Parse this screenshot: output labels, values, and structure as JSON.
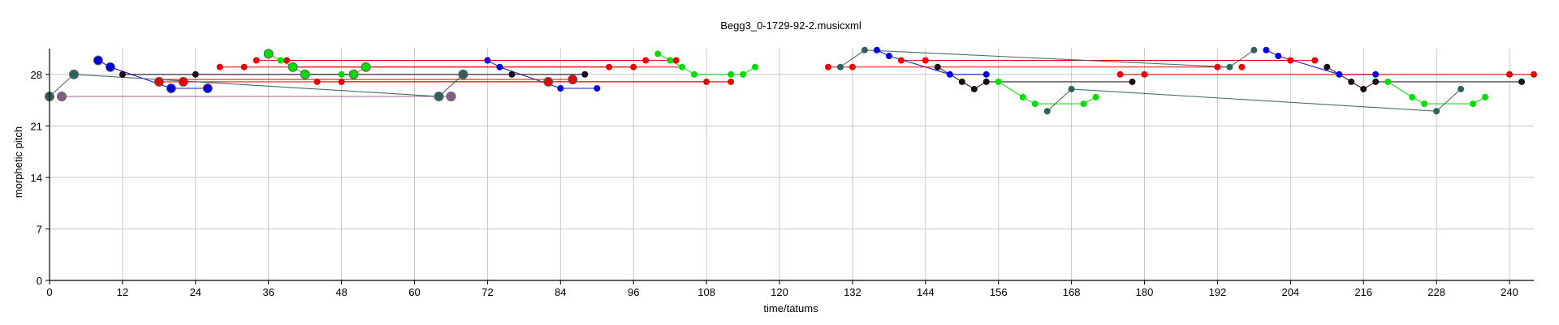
{
  "chart_data": {
    "type": "scatter",
    "title": "Begg3_0-1729-92-2.musicxml",
    "xlabel": "time/tatums",
    "ylabel": "morphetic pitch",
    "xlim": [
      0,
      244
    ],
    "ylim": [
      0,
      31.5
    ],
    "x_ticks": [
      0,
      12,
      24,
      36,
      48,
      60,
      72,
      84,
      96,
      108,
      120,
      132,
      144,
      156,
      168,
      180,
      192,
      204,
      216,
      228,
      240
    ],
    "y_ticks": [
      0,
      7,
      14,
      21,
      28
    ],
    "grid": true,
    "legend": "none",
    "series": [
      {
        "color": "#0000dd",
        "lines": [
          [
            [
              8,
              29.9
            ],
            [
              10,
              29
            ],
            [
              20,
              26.1
            ],
            [
              26,
              26.1
            ]
          ],
          [
            [
              72,
              29.9
            ],
            [
              74,
              29
            ],
            [
              84,
              26.1
            ],
            [
              90,
              26.1
            ]
          ],
          [
            [
              136,
              31.3
            ],
            [
              138,
              30.5
            ],
            [
              148,
              28
            ],
            [
              154,
              28
            ]
          ],
          [
            [
              200,
              31.3
            ],
            [
              202,
              30.5
            ],
            [
              212,
              28
            ],
            [
              218,
              28
            ]
          ]
        ],
        "points": [
          [
            8,
            29.9
          ],
          [
            10,
            29
          ],
          [
            20,
            26.1
          ],
          [
            26,
            26.1
          ],
          [
            72,
            29.9
          ],
          [
            74,
            29
          ],
          [
            84,
            26.1
          ],
          [
            90,
            26.1
          ],
          [
            136,
            31.3
          ],
          [
            138,
            30.5
          ],
          [
            148,
            28
          ],
          [
            154,
            28
          ],
          [
            200,
            31.3
          ],
          [
            202,
            30.5
          ],
          [
            212,
            28
          ],
          [
            218,
            28
          ]
        ],
        "large_points": [
          8,
          10,
          20,
          26
        ]
      },
      {
        "color": "#00dd00",
        "lines": [
          [
            [
              36,
              30.8
            ],
            [
              38,
              29.9
            ],
            [
              40,
              29
            ],
            [
              42,
              28
            ],
            [
              48,
              28
            ],
            [
              50,
              28
            ],
            [
              52,
              29
            ]
          ],
          [
            [
              100,
              30.8
            ],
            [
              102,
              29.9
            ],
            [
              104,
              29
            ],
            [
              106,
              28
            ],
            [
              112,
              28
            ],
            [
              114,
              28
            ],
            [
              116,
              29
            ]
          ],
          [
            [
              156,
              27
            ],
            [
              160,
              24.9
            ],
            [
              162,
              24
            ],
            [
              168,
              24
            ],
            [
              170,
              24
            ],
            [
              172,
              24.9
            ]
          ],
          [
            [
              220,
              27
            ],
            [
              224,
              24.9
            ],
            [
              226,
              24
            ],
            [
              232,
              24
            ],
            [
              234,
              24
            ],
            [
              236,
              24.9
            ]
          ]
        ],
        "points": [
          [
            36,
            30.8
          ],
          [
            38,
            29.9
          ],
          [
            40,
            29
          ],
          [
            42,
            28
          ],
          [
            48,
            28
          ],
          [
            50,
            28
          ],
          [
            52,
            29
          ],
          [
            100,
            30.8
          ],
          [
            102,
            29.9
          ],
          [
            104,
            29
          ],
          [
            106,
            28
          ],
          [
            112,
            28
          ],
          [
            114,
            28
          ],
          [
            116,
            29
          ],
          [
            156,
            27
          ],
          [
            160,
            24.9
          ],
          [
            162,
            24
          ],
          [
            170,
            24
          ],
          [
            172,
            24.9
          ],
          [
            220,
            27
          ],
          [
            224,
            24.9
          ],
          [
            226,
            24
          ],
          [
            234,
            24
          ],
          [
            236,
            24.9
          ]
        ],
        "large_points": [
          36,
          40,
          42,
          50,
          52
        ]
      },
      {
        "color": "#ee0000",
        "lines": [
          [
            [
              18,
              27
            ],
            [
              22,
              27
            ],
            [
              82,
              27
            ],
            [
              112,
              27
            ]
          ],
          [
            [
              18,
              27.3
            ],
            [
              22,
              27.3
            ],
            [
              86,
              27.3
            ]
          ],
          [
            [
              28,
              29
            ],
            [
              32,
              29
            ],
            [
              96,
              29
            ]
          ],
          [
            [
              34,
              29.9
            ],
            [
              98,
              29.9
            ]
          ],
          [
            [
              39,
              29.9
            ],
            [
              103,
              29.9
            ]
          ],
          [
            [
              40,
              29
            ],
            [
              104,
              29
            ]
          ],
          [
            [
              44,
              27
            ],
            [
              108,
              27
            ]
          ],
          [
            [
              48,
              27
            ],
            [
              112,
              27
            ]
          ],
          [
            [
              128,
              29
            ],
            [
              130,
              29
            ],
            [
              132,
              29
            ],
            [
              194,
              29
            ]
          ],
          [
            [
              140,
              29.9
            ],
            [
              204,
              29.9
            ]
          ],
          [
            [
              144,
              29.9
            ],
            [
              208,
              29.9
            ]
          ],
          [
            [
              176,
              28
            ],
            [
              180,
              28
            ],
            [
              240,
              28
            ],
            [
              244,
              28
            ]
          ]
        ],
        "points": [
          [
            18,
            27
          ],
          [
            22,
            27
          ],
          [
            28,
            29
          ],
          [
            32,
            29
          ],
          [
            34,
            29.9
          ],
          [
            39,
            29.9
          ],
          [
            44,
            27
          ],
          [
            48,
            27
          ],
          [
            82,
            27
          ],
          [
            86,
            27.3
          ],
          [
            92,
            29
          ],
          [
            96,
            29
          ],
          [
            98,
            29.9
          ],
          [
            103,
            29.9
          ],
          [
            108,
            27
          ],
          [
            112,
            27
          ],
          [
            128,
            29
          ],
          [
            132,
            29
          ],
          [
            140,
            29.9
          ],
          [
            144,
            29.9
          ],
          [
            176,
            28
          ],
          [
            180,
            28
          ],
          [
            192,
            29
          ],
          [
            196,
            29
          ],
          [
            204,
            29.9
          ],
          [
            208,
            29.9
          ],
          [
            240,
            28
          ],
          [
            244,
            28
          ]
        ],
        "large_points": [
          18,
          22,
          82,
          86
        ]
      },
      {
        "color": "#1a0a1a",
        "lines": [
          [
            [
              12,
              28
            ],
            [
              24,
              28
            ],
            [
              76,
              28
            ],
            [
              88,
              28
            ]
          ],
          [
            [
              146,
              29
            ],
            [
              150,
              27
            ],
            [
              152,
              26
            ],
            [
              154,
              27
            ],
            [
              178,
              27
            ]
          ],
          [
            [
              210,
              29
            ],
            [
              214,
              27
            ],
            [
              216,
              26
            ],
            [
              218,
              27
            ],
            [
              242,
              27
            ]
          ]
        ],
        "points": [
          [
            12,
            28
          ],
          [
            24,
            28
          ],
          [
            76,
            28
          ],
          [
            88,
            28
          ],
          [
            146,
            29
          ],
          [
            150,
            27
          ],
          [
            152,
            26
          ],
          [
            154,
            27
          ],
          [
            178,
            27
          ],
          [
            210,
            29
          ],
          [
            214,
            27
          ],
          [
            216,
            26
          ],
          [
            218,
            27
          ],
          [
            242,
            27
          ]
        ],
        "large_points": []
      },
      {
        "color": "#2f5f5f",
        "lines": [
          [
            [
              0,
              25
            ],
            [
              4,
              28
            ],
            [
              64,
              25
            ],
            [
              68,
              28
            ]
          ],
          [
            [
              130,
              29
            ],
            [
              134,
              31.3
            ],
            [
              194,
              29
            ],
            [
              198,
              31.3
            ]
          ],
          [
            [
              164,
              23
            ],
            [
              168,
              26
            ],
            [
              228,
              23
            ],
            [
              232,
              26
            ]
          ]
        ],
        "points": [
          [
            0,
            25
          ],
          [
            4,
            28
          ],
          [
            64,
            25
          ],
          [
            68,
            28
          ],
          [
            130,
            29
          ],
          [
            134,
            31.3
          ],
          [
            194,
            29
          ],
          [
            198,
            31.3
          ],
          [
            164,
            23
          ],
          [
            168,
            26
          ],
          [
            228,
            23
          ],
          [
            232,
            26
          ]
        ],
        "large_points": [
          0,
          4,
          64,
          68
        ]
      },
      {
        "color": "#8a5a8a",
        "lines": [
          [
            [
              2,
              25
            ],
            [
              66,
              25
            ]
          ]
        ],
        "points": [
          [
            2,
            25
          ],
          [
            66,
            25
          ]
        ],
        "large_points": [
          2,
          66
        ]
      }
    ]
  }
}
